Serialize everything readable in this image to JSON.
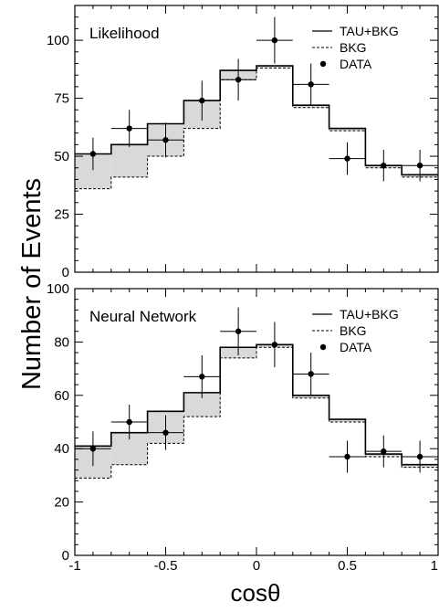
{
  "figure": {
    "ylabel": "Number of Events",
    "xlabel": "cosθ"
  },
  "chart_data": [
    {
      "type": "bar",
      "label": "Likelihood",
      "xlim": [
        -1,
        1
      ],
      "ylim": [
        0,
        115
      ],
      "yticks": [
        0,
        25,
        50,
        75,
        100
      ],
      "xticks": [
        -1,
        -0.5,
        0,
        0.5,
        1
      ],
      "bin_edges": [
        -1,
        -0.8,
        -0.6,
        -0.4,
        -0.2,
        0,
        0.2,
        0.4,
        0.6,
        0.8,
        1
      ],
      "series": [
        {
          "name": "TAU+BKG",
          "style": "solid-step",
          "values": [
            51,
            55,
            64,
            74,
            87,
            89,
            72,
            62,
            46,
            42
          ]
        },
        {
          "name": "BKG",
          "style": "dashed-step",
          "values": [
            36,
            41,
            50,
            62,
            83,
            88,
            71,
            61,
            45,
            41
          ]
        },
        {
          "name": "DATA",
          "style": "points",
          "x": [
            -0.9,
            -0.7,
            -0.5,
            -0.3,
            -0.1,
            0.1,
            0.3,
            0.5,
            0.7,
            0.9
          ],
          "values": [
            51,
            62,
            57,
            74,
            83,
            100,
            81,
            49,
            46,
            46
          ],
          "errors": [
            7,
            8,
            7.5,
            8.6,
            9,
            10,
            9,
            7,
            6.8,
            6.8
          ]
        }
      ],
      "shading": "between BKG and TAU+BKG",
      "legend_position": "top-right"
    },
    {
      "type": "bar",
      "label": "Neural Network",
      "xlim": [
        -1,
        1
      ],
      "ylim": [
        0,
        100
      ],
      "yticks": [
        0,
        20,
        40,
        60,
        80,
        100
      ],
      "xticks": [
        -1,
        -0.5,
        0,
        0.5,
        1
      ],
      "xticklabels": [
        "-1",
        "-0.5",
        "0",
        "0.5",
        "1"
      ],
      "bin_edges": [
        -1,
        -0.8,
        -0.6,
        -0.4,
        -0.2,
        0,
        0.2,
        0.4,
        0.6,
        0.8,
        1
      ],
      "series": [
        {
          "name": "TAU+BKG",
          "style": "solid-step",
          "values": [
            41,
            46,
            54,
            61,
            78,
            79,
            60,
            51,
            38,
            34
          ]
        },
        {
          "name": "BKG",
          "style": "dashed-step",
          "values": [
            29,
            34,
            42,
            52,
            74,
            78,
            59,
            50,
            37,
            33
          ]
        },
        {
          "name": "DATA",
          "style": "points",
          "x": [
            -0.9,
            -0.7,
            -0.5,
            -0.3,
            -0.1,
            0.1,
            0.3,
            0.5,
            0.7,
            0.9
          ],
          "values": [
            40,
            50,
            46,
            67,
            84,
            79,
            68,
            37,
            39,
            37
          ],
          "errors": [
            6.5,
            6.5,
            6.5,
            8,
            9,
            8.5,
            8,
            6,
            6,
            6
          ]
        }
      ],
      "shading": "between BKG and TAU+BKG",
      "legend_position": "top-right"
    }
  ]
}
